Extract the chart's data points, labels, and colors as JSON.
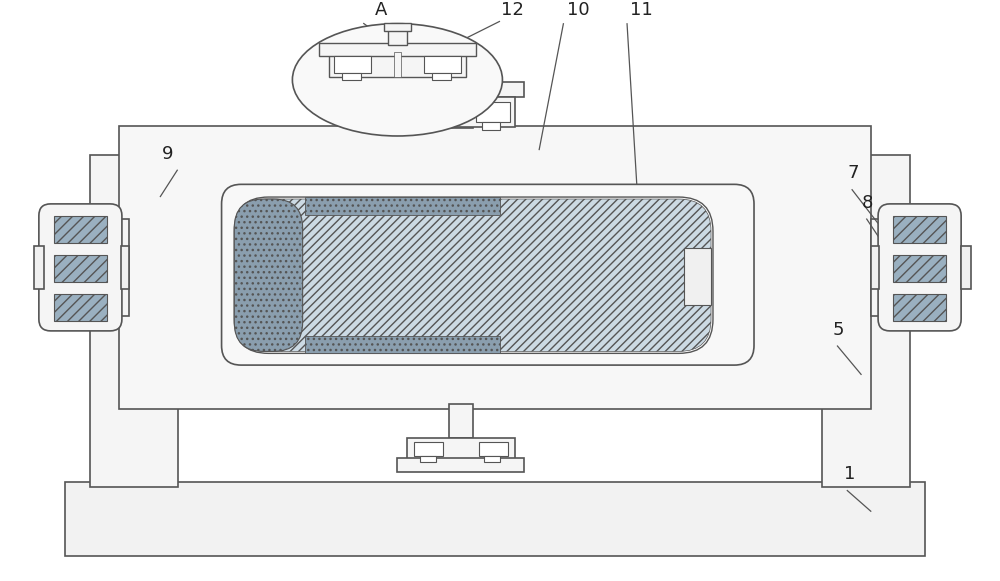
{
  "bg_color": "#ffffff",
  "line_color": "#555555",
  "fig_width": 10.0,
  "fig_height": 5.81,
  "dpi": 100
}
